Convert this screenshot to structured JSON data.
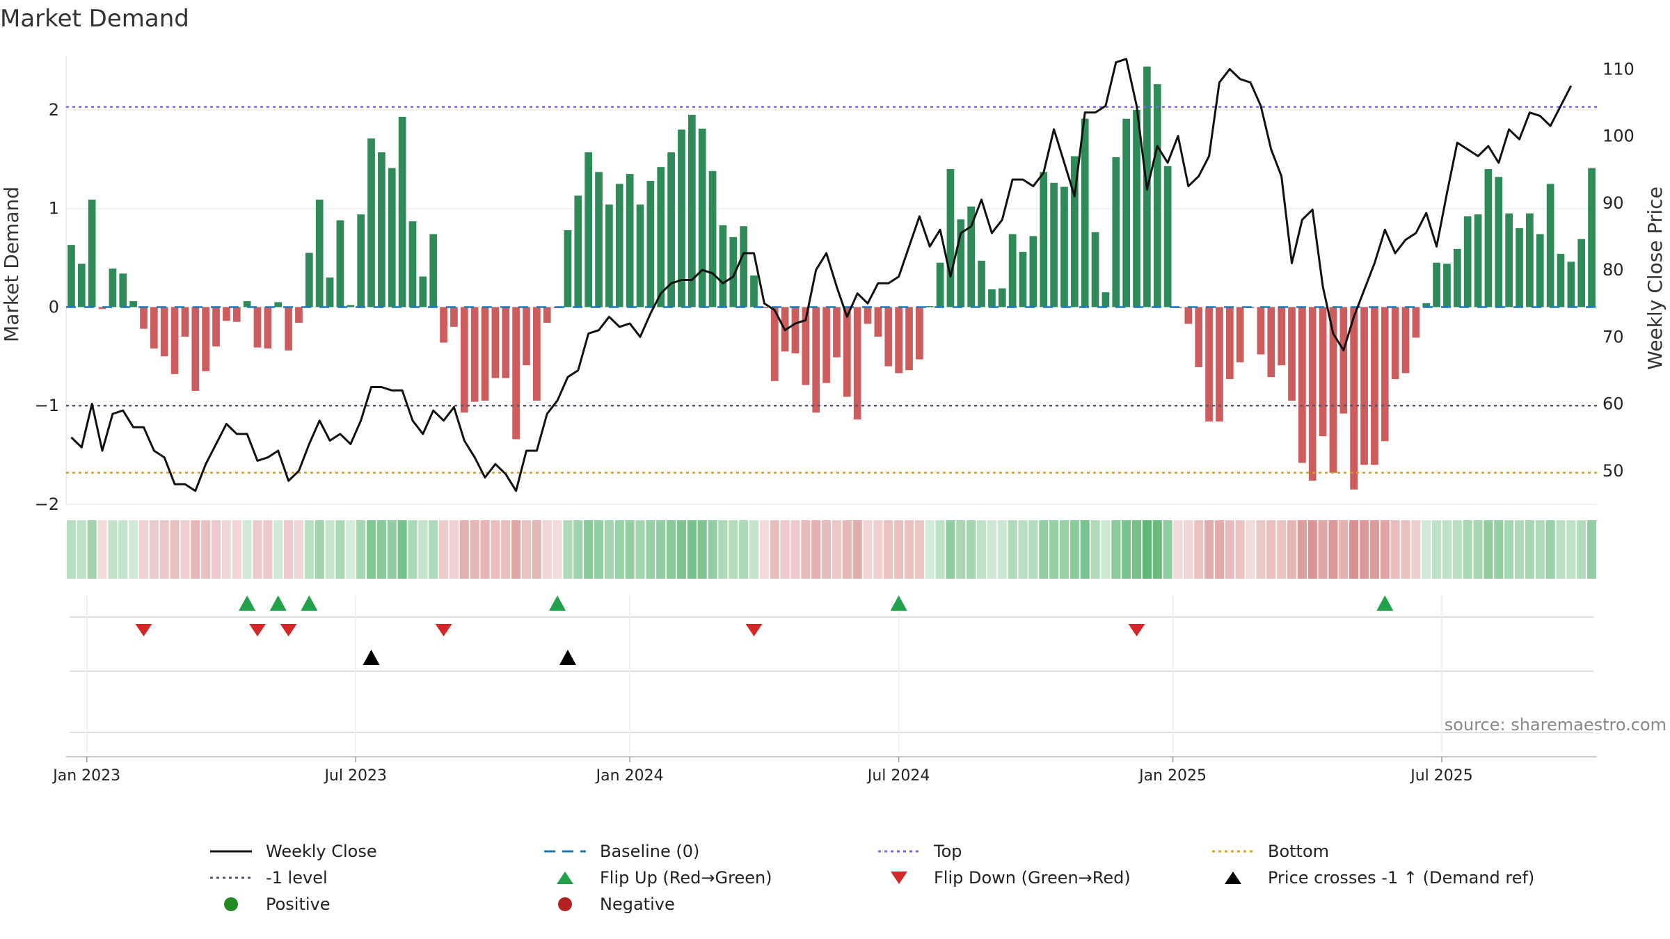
{
  "chart_data": {
    "type": "bar",
    "title": "Market Demand",
    "ylabel_left": "Market Demand",
    "ylabel_right": "Weekly Close Price",
    "ylim_left": [
      -2.0,
      2.55
    ],
    "ylim_right": [
      45,
      112
    ],
    "yticks_left": [
      {
        "value": 2,
        "label": "2"
      },
      {
        "value": 1,
        "label": "1"
      },
      {
        "value": 0,
        "label": "0"
      },
      {
        "value": -1,
        "label": "−1"
      },
      {
        "value": -2,
        "label": "−2"
      }
    ],
    "yticks_right": [
      {
        "value": 110,
        "label": "110"
      },
      {
        "value": 100,
        "label": "100"
      },
      {
        "value": 90,
        "label": "90"
      },
      {
        "value": 80,
        "label": "80"
      },
      {
        "value": 70,
        "label": "70"
      },
      {
        "value": 60,
        "label": "60"
      },
      {
        "value": 50,
        "label": "50"
      }
    ],
    "x_ticks": [
      {
        "index": 1.5,
        "label": "Jan 2023"
      },
      {
        "index": 27.5,
        "label": "Jul 2023"
      },
      {
        "index": 54,
        "label": "Jan 2024"
      },
      {
        "index": 80,
        "label": "Jul 2024"
      },
      {
        "index": 106.5,
        "label": "Jan 2025"
      },
      {
        "index": 132.5,
        "label": "Jul 2025"
      }
    ],
    "reference_lines": {
      "top": 2.03,
      "minus_one": -1.0,
      "bottom": -1.68
    },
    "demand": [
      0.63,
      0.44,
      1.09,
      -0.02,
      0.39,
      0.34,
      0.06,
      -0.22,
      -0.42,
      -0.5,
      -0.68,
      -0.3,
      -0.85,
      -0.65,
      -0.4,
      -0.14,
      -0.15,
      0.06,
      -0.41,
      -0.42,
      0.05,
      -0.44,
      -0.16,
      0.55,
      1.09,
      0.3,
      0.88,
      0.02,
      0.94,
      1.71,
      1.57,
      1.41,
      1.93,
      0.87,
      0.31,
      0.74,
      -0.36,
      -0.2,
      -1.07,
      -0.96,
      -0.95,
      -0.72,
      -0.72,
      -1.34,
      -0.59,
      -0.95,
      -0.16,
      -0.01,
      0.78,
      1.13,
      1.57,
      1.37,
      1.04,
      1.25,
      1.35,
      1.04,
      1.28,
      1.42,
      1.57,
      1.8,
      1.95,
      1.81,
      1.38,
      0.83,
      0.71,
      0.82,
      0.32,
      -0.01,
      -0.75,
      -0.45,
      -0.47,
      -0.79,
      -1.07,
      -0.77,
      -0.51,
      -0.91,
      -1.14,
      -0.17,
      -0.3,
      -0.6,
      -0.67,
      -0.64,
      -0.53,
      0.01,
      0.45,
      1.4,
      0.89,
      1.02,
      0.47,
      0.18,
      0.19,
      0.74,
      0.56,
      0.72,
      1.37,
      1.26,
      1.22,
      1.53,
      1.91,
      0.76,
      0.15,
      1.52,
      1.91,
      2.0,
      2.44,
      2.26,
      1.43,
      -0.01,
      -0.17,
      -0.61,
      -1.16,
      -1.16,
      -0.73,
      -0.56,
      -0.01,
      -0.48,
      -0.71,
      -0.59,
      -0.95,
      -1.58,
      -1.76,
      -1.31,
      -1.68,
      -1.08,
      -1.85,
      -1.6,
      -1.6,
      -1.36,
      -0.73,
      -0.67,
      -0.31,
      0.04,
      0.45,
      0.44,
      0.59,
      0.92,
      0.94,
      1.4,
      1.32,
      0.95,
      0.8,
      0.95,
      0.74,
      1.25,
      0.54,
      0.46,
      0.69,
      1.41
    ],
    "weekly_close": [
      55,
      53.5,
      60,
      53,
      58.5,
      59,
      56.5,
      56.5,
      53,
      52,
      48,
      48,
      47,
      51,
      54,
      57,
      55.5,
      55.5,
      51.5,
      52,
      53,
      48.5,
      50,
      54,
      57.5,
      54.5,
      55.5,
      54,
      57.5,
      62.5,
      62.5,
      62,
      62,
      57.5,
      55.5,
      59,
      57.5,
      59.5,
      54.5,
      52,
      49,
      51,
      49.5,
      47,
      53,
      53,
      58.5,
      60.5,
      64,
      65,
      70.5,
      71,
      73,
      71.5,
      72,
      70,
      73.5,
      76.5,
      78,
      78.5,
      78.5,
      80,
      79.5,
      78,
      79,
      82.5,
      82.5,
      75,
      74,
      71,
      72,
      72.5,
      80,
      82.5,
      77.5,
      73,
      76.5,
      75,
      78,
      78,
      79,
      83.5,
      88,
      83.5,
      86,
      79,
      85.5,
      86.5,
      90.5,
      85.5,
      87.5,
      93.5,
      93.5,
      92.5,
      94.5,
      101,
      96,
      91,
      103.5,
      103.5,
      104.5,
      111,
      111.5,
      104.5,
      92,
      98.5,
      96,
      100,
      92.5,
      94,
      97,
      108,
      110,
      108.5,
      108,
      104.5,
      98,
      94,
      81,
      87.5,
      89,
      77.5,
      70.5,
      68,
      73,
      77,
      81,
      86,
      82.5,
      84.5,
      85.5,
      88.5,
      83.5,
      91.5,
      99,
      98,
      97,
      98.5,
      96,
      101,
      99.5,
      103.5,
      103,
      101.5,
      104.5,
      107.5
    ],
    "flip_up": [
      17,
      20,
      23,
      47,
      80,
      127
    ],
    "flip_down": [
      7,
      18,
      21,
      36,
      66,
      103
    ],
    "price_cross": [
      29,
      48
    ],
    "footer_note": "source: sharemaestro.com"
  },
  "legend": [
    {
      "key": "weekly_close",
      "label": "Weekly Close",
      "symbol": "line-solid",
      "color": "#111111"
    },
    {
      "key": "baseline",
      "label": "Baseline (0)",
      "symbol": "line-dashed",
      "color": "#1f77b4"
    },
    {
      "key": "top",
      "label": "Top",
      "symbol": "line-dotted",
      "color": "#7b68ee"
    },
    {
      "key": "bottom",
      "label": "Bottom",
      "symbol": "line-dotted",
      "color": "#d4a017"
    },
    {
      "key": "minus_one",
      "label": "-1 level",
      "symbol": "line-dotted",
      "color": "#555577"
    },
    {
      "key": "flip_up",
      "label": "Flip Up (Red→Green)",
      "symbol": "triangle-up",
      "color": "#22a04a"
    },
    {
      "key": "flip_down",
      "label": "Flip Down (Green→Red)",
      "symbol": "triangle-down",
      "color": "#d62728"
    },
    {
      "key": "price_cross",
      "label": "Price crosses -1 ↑ (Demand ref)",
      "symbol": "triangle-up",
      "color": "#000000"
    },
    {
      "key": "positive",
      "label": "Positive",
      "symbol": "circle",
      "color": "#228b22"
    },
    {
      "key": "negative",
      "label": "Negative",
      "symbol": "circle",
      "color": "#b22222"
    }
  ],
  "colors": {
    "positive_bar": "#2e8b57",
    "negative_bar": "#cd5c5c",
    "price_line": "#111111",
    "baseline": "#1f77b4",
    "top": "#7b68ee",
    "bottom": "#d4a017",
    "minus_one": "#555577",
    "strip_green": "#3aa655",
    "strip_red": "#c85a5a",
    "flip_up": "#22a04a",
    "flip_down": "#d62728",
    "cross": "#000000"
  }
}
